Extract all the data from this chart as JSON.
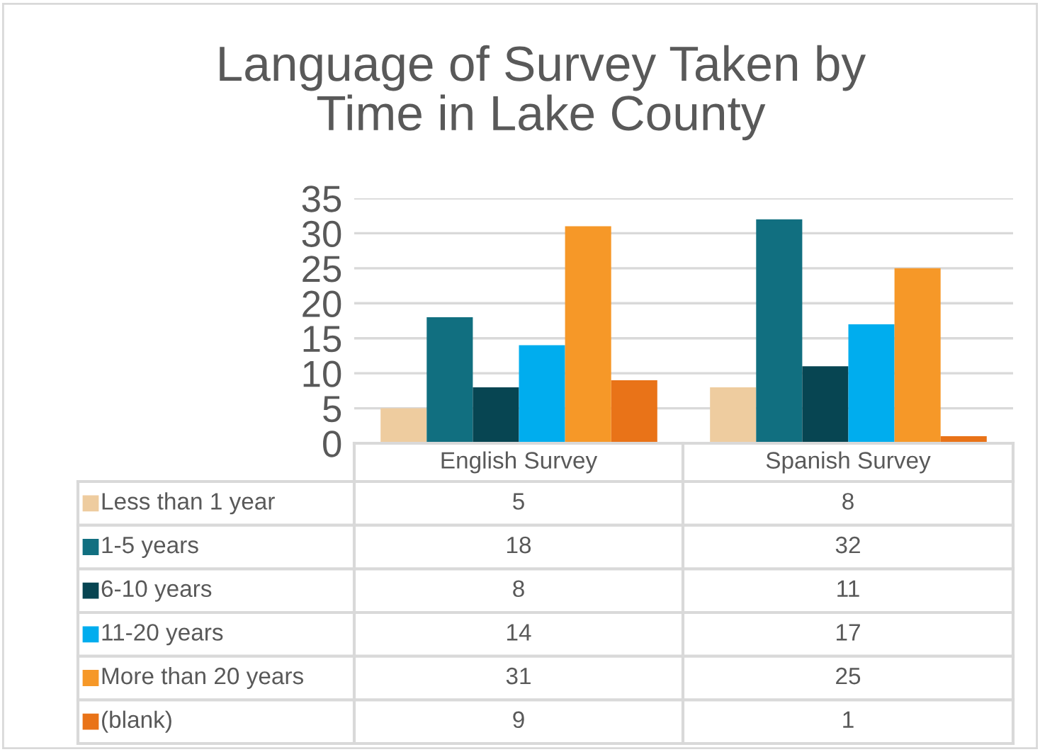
{
  "chart_data": {
    "type": "bar",
    "title": "Language of Survey Taken by\nTime in Lake County",
    "categories": [
      "English Survey",
      "Spanish Survey"
    ],
    "series": [
      {
        "name": "Less than 1 year",
        "color": "#eecc9f",
        "values": [
          5,
          8
        ]
      },
      {
        "name": "1-5 years",
        "color": "#116f80",
        "values": [
          18,
          32
        ]
      },
      {
        "name": "6-10 years",
        "color": "#074552",
        "values": [
          8,
          11
        ]
      },
      {
        "name": "11-20 years",
        "color": "#00adee",
        "values": [
          14,
          17
        ]
      },
      {
        "name": "More than 20 years",
        "color": "#f69828",
        "values": [
          31,
          25
        ]
      },
      {
        "name": "(blank)",
        "color": "#e97318",
        "values": [
          9,
          1
        ]
      }
    ],
    "ylim": [
      0,
      35
    ],
    "yticks": [
      0,
      5,
      10,
      15,
      20,
      25,
      30,
      35
    ],
    "grid": "y",
    "data_labels": true,
    "legend": "bottom"
  }
}
